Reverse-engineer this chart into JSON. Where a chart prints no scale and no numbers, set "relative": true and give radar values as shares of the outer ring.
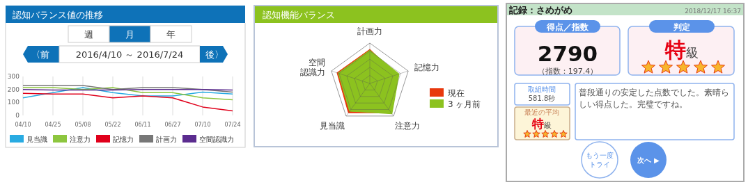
{
  "chart_data": [
    {
      "type": "line",
      "title": "認知バランス値の推移",
      "annotations": [
        "週",
        "月",
        "年",
        "〈前",
        "2016/4/10 ～ 2016/7/24",
        "後〉"
      ],
      "categories": [
        "04/10",
        "04/25",
        "05/08",
        "05/22",
        "06/11",
        "06/27",
        "07/10",
        "07/24"
      ],
      "ylim": [
        0,
        300
      ],
      "yticks": [
        0,
        100,
        200,
        300
      ],
      "grid": "x",
      "legend": "bottom",
      "marker": "none",
      "series": [
        {
          "name": "見当識",
          "color": "#29abe2",
          "values": [
            135,
            175,
            215,
            175,
            150,
            150,
            180,
            165
          ]
        },
        {
          "name": "注意力",
          "color": "#8dc63f",
          "values": [
            215,
            215,
            200,
            215,
            175,
            175,
            135,
            120
          ]
        },
        {
          "name": "記憶力",
          "color": "#e0001b",
          "values": [
            170,
            165,
            165,
            135,
            150,
            135,
            65,
            35
          ]
        },
        {
          "name": "計画力",
          "color": "#777777",
          "values": [
            230,
            230,
            230,
            200,
            215,
            215,
            200,
            180
          ]
        },
        {
          "name": "空間認識力",
          "color": "#5b2c8f",
          "values": [
            200,
            195,
            195,
            195,
            200,
            200,
            200,
            195
          ]
        }
      ]
    },
    {
      "type": "radar",
      "title": "認知機能バランス",
      "relative": true,
      "legend": "right",
      "categories": [
        "計画力",
        "記憶力",
        "注意力",
        "見当識",
        "空間認識力"
      ],
      "series": [
        {
          "name": "現在",
          "color": "#e8380d",
          "values": [
            0.84,
            0.69,
            0.9,
            0.9,
            0.85
          ]
        },
        {
          "name": "3 ヶ月前",
          "color": "#8cc21f",
          "values": [
            0.82,
            0.76,
            0.93,
            0.85,
            0.82
          ]
        }
      ]
    },
    {
      "type": "other",
      "title": "記録：さめがめ",
      "annotations": [
        "2018/12/17 16:37",
        "得点／指数",
        "2790",
        "（指数：197.4）",
        "判定",
        "特級",
        "取組時間",
        "581.8秒",
        "最近の平均",
        "特級",
        "普段通りの安定した点数でした。素晴らしい得点した。完璧ですね。",
        "もう一度トライ",
        "次へ ▶"
      ]
    }
  ]
}
